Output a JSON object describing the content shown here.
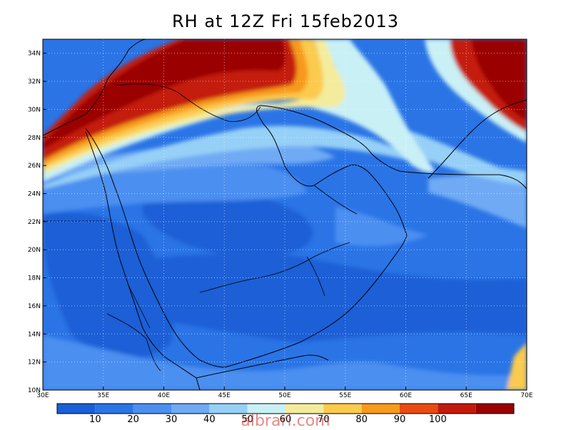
{
  "title": "RH at 12Z Fri 15feb2013",
  "watermark": "albrari.com",
  "map": {
    "lon_range": [
      30,
      70
    ],
    "lat_range": [
      10,
      35
    ],
    "x_ticks": [
      "30E",
      "35E",
      "40E",
      "45E",
      "50E",
      "55E",
      "60E",
      "65E",
      "70E"
    ],
    "y_ticks": [
      "10N",
      "12N",
      "14N",
      "16N",
      "18N",
      "20N",
      "22N",
      "24N",
      "26N",
      "28N",
      "30N",
      "32N",
      "34N"
    ],
    "gridlines": "dotted"
  },
  "colorbar": {
    "colors": [
      "#1a5fd6",
      "#2a74e6",
      "#4b8ff0",
      "#6faaf4",
      "#96d0f7",
      "#c9f0f5",
      "#f4ec9c",
      "#fbcb4d",
      "#f79a1e",
      "#e94b12",
      "#c41a0c",
      "#9a0000"
    ],
    "labels": [
      "10",
      "20",
      "30",
      "40",
      "50",
      "60",
      "70",
      "80",
      "90",
      "100"
    ]
  }
}
